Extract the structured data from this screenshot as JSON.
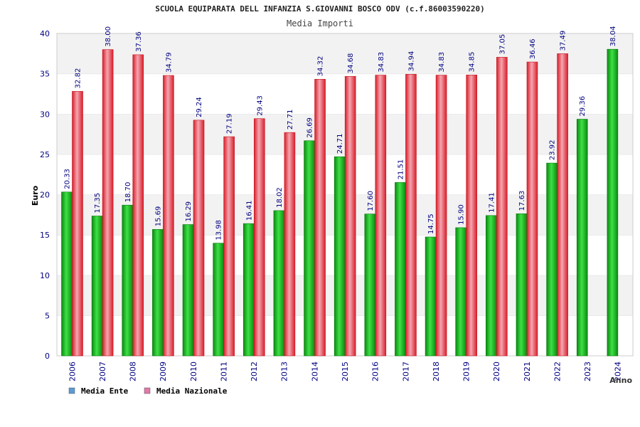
{
  "chart_data": {
    "type": "bar",
    "title": "SCUOLA EQUIPARATA DELL INFANZIA S.GIOVANNI BOSCO ODV (c.f.86003590220)",
    "subtitle": "Media Importi",
    "xlabel": "Anno",
    "ylabel": "Euro",
    "ylim": [
      0,
      40
    ],
    "yticks": [
      0,
      5,
      10,
      15,
      20,
      25,
      30,
      35,
      40
    ],
    "categories": [
      "2006",
      "2007",
      "2008",
      "2009",
      "2010",
      "2011",
      "2012",
      "2013",
      "2014",
      "2015",
      "2016",
      "2017",
      "2018",
      "2019",
      "2020",
      "2021",
      "2022",
      "2023",
      "2024"
    ],
    "series": [
      {
        "name": "Media Ente",
        "legend_color": "#5b9bd5",
        "bar_color": "#12b51a",
        "values": [
          20.33,
          17.35,
          18.7,
          15.69,
          16.29,
          13.98,
          16.41,
          18.02,
          26.69,
          24.71,
          17.6,
          21.51,
          14.75,
          15.9,
          17.41,
          17.63,
          23.92,
          29.36,
          38.04
        ],
        "labels": [
          "20.33",
          "17.35",
          "18.70",
          "15.69",
          "16.29",
          "13.98",
          "16.41",
          "18.02",
          "26.69",
          "24.71",
          "17.60",
          "21.51",
          "14.75",
          "15.90",
          "17.41",
          "17.63",
          "23.92",
          "29.36",
          "38.04"
        ]
      },
      {
        "name": "Media Nazionale",
        "legend_color": "#e07aa8",
        "bar_color": "#e8232f",
        "values": [
          32.82,
          38.0,
          37.36,
          34.79,
          29.24,
          27.19,
          29.43,
          27.71,
          34.32,
          34.68,
          34.83,
          34.94,
          34.83,
          34.85,
          37.05,
          36.46,
          37.49,
          null,
          null
        ],
        "labels": [
          "32.82",
          "38.00",
          "37.36",
          "34.79",
          "29.24",
          "27.19",
          "29.43",
          "27.71",
          "34.32",
          "34.68",
          "34.83",
          "34.94",
          "34.83",
          "34.85",
          "37.05",
          "36.46",
          "37.49",
          null,
          null
        ]
      }
    ],
    "grid": true,
    "legend_position": "bottom-left"
  }
}
